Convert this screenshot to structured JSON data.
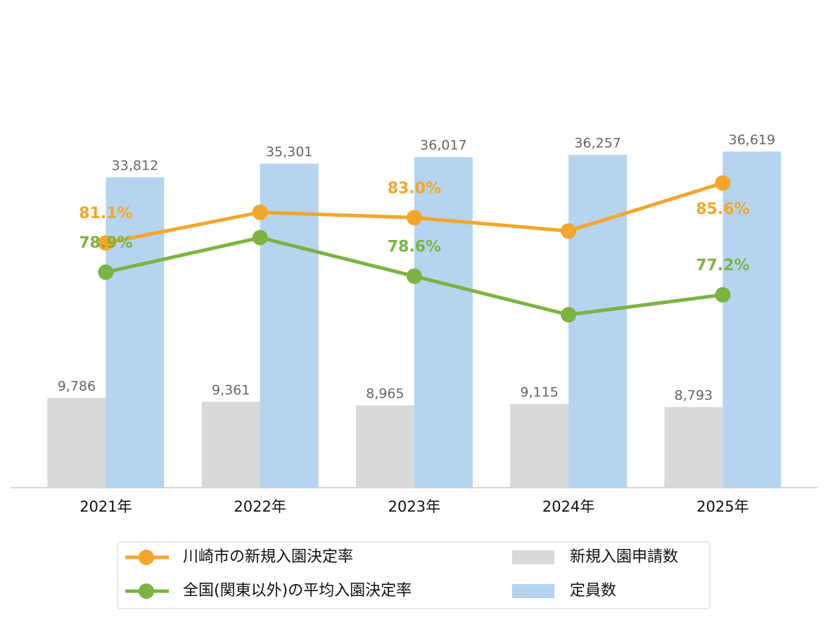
{
  "chart_data": {
    "type": "bar",
    "categories": [
      "2021年",
      "2022年",
      "2023年",
      "2024年",
      "2025年"
    ],
    "series": [
      {
        "name": "新規入園申請数",
        "type": "bar",
        "color": "#d9d9d9",
        "values": [
          9786,
          9361,
          8965,
          9115,
          8793
        ],
        "value_labels": [
          "9,786",
          "9,361",
          "8,965",
          "9,115",
          "8,793"
        ]
      },
      {
        "name": "定員数",
        "type": "bar",
        "color": "#b5d4ef",
        "values": [
          33812,
          35301,
          36017,
          36257,
          36619
        ],
        "value_labels": [
          "33,812",
          "35,301",
          "36,017",
          "36,257",
          "36,619"
        ]
      },
      {
        "name": "川崎市の新規入園決定率",
        "type": "line",
        "axis": "y2",
        "color": "#f4a62a",
        "values": [
          81.1,
          83.4,
          83.0,
          82.0,
          85.6
        ],
        "value_labels": [
          "81.1%",
          null,
          "83.0%",
          null,
          "85.6%"
        ]
      },
      {
        "name": "全国(関東以外)の平均入園決定率",
        "type": "line",
        "axis": "y2",
        "color": "#7cb342",
        "values": [
          78.9,
          81.5,
          78.6,
          75.7,
          77.2
        ],
        "value_labels": [
          "78.9%",
          null,
          "78.6%",
          null,
          "77.2%"
        ]
      }
    ],
    "ylim": [
      0,
      40000
    ],
    "y2lim": [
      62.7,
      90.3
    ]
  }
}
